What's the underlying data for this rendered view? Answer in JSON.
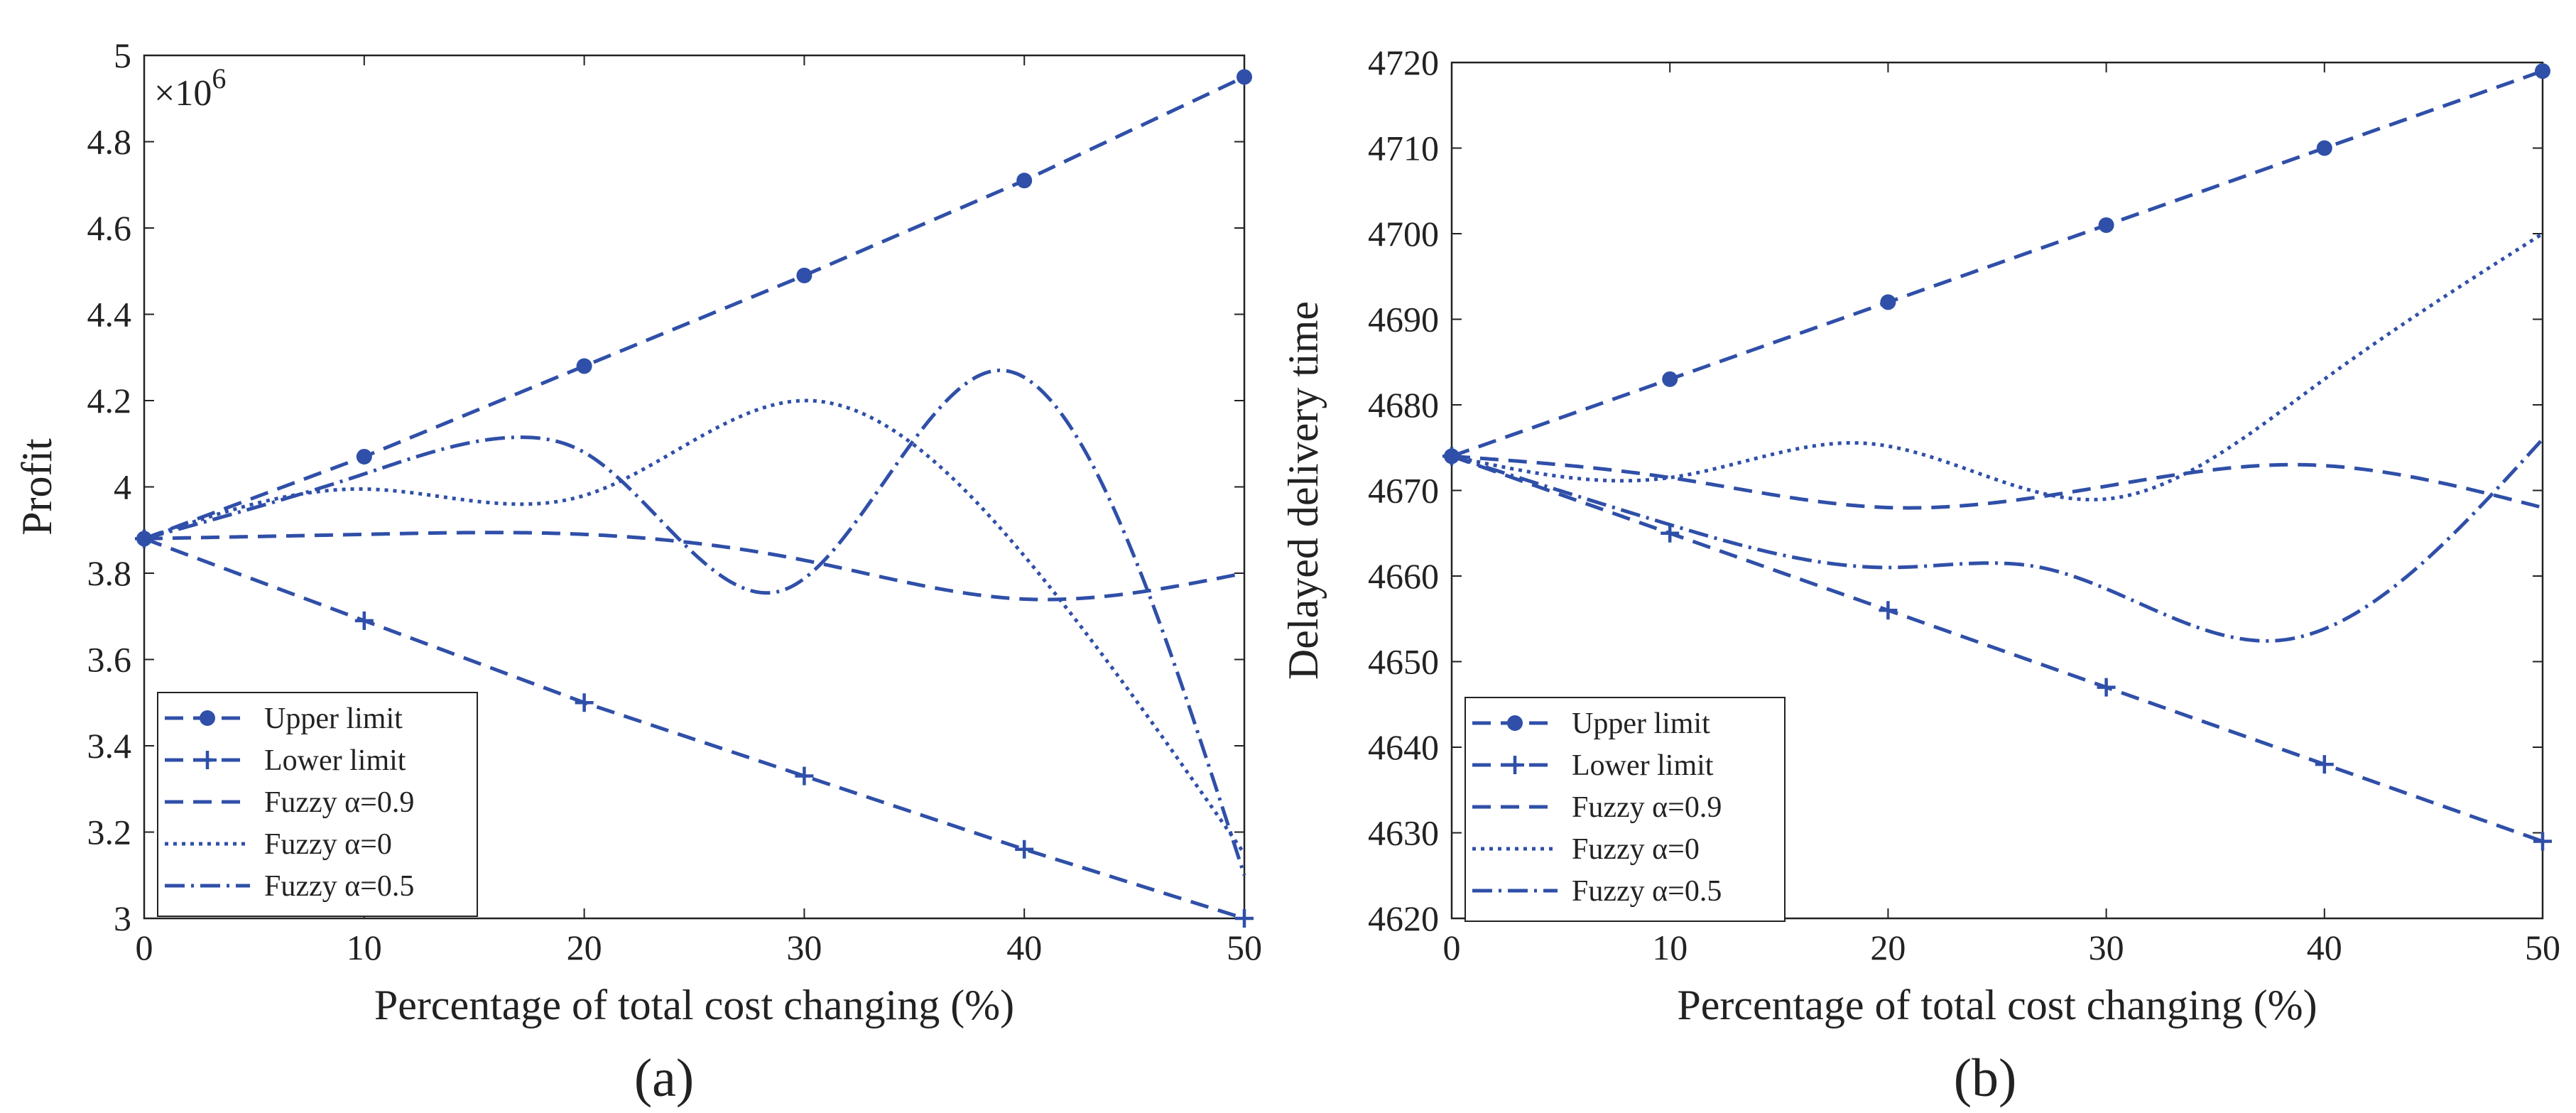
{
  "colors": {
    "series": "#2f4fa8",
    "axis": "#222222",
    "background": "#ffffff"
  },
  "chart_data": [
    {
      "type": "line",
      "subplot_label": "(a)",
      "xlabel": "Percentage of total cost changing (%)",
      "ylabel": "Profit",
      "y_multiplier_label": "×10",
      "y_multiplier_exp": "6",
      "xlim": [
        0,
        50
      ],
      "ylim": [
        3,
        5
      ],
      "xticks": [
        0,
        10,
        20,
        30,
        40,
        50
      ],
      "yticks": [
        3,
        3.2,
        3.4,
        3.6,
        3.8,
        4,
        4.2,
        4.4,
        4.6,
        4.8,
        5
      ],
      "xtick_labels": [
        "0",
        "10",
        "20",
        "30",
        "40",
        "50"
      ],
      "ytick_labels": [
        "3",
        "3.2",
        "3.4",
        "3.6",
        "3.8",
        "4",
        "4.2",
        "4.4",
        "4.6",
        "4.8",
        "5"
      ],
      "legend_position": "bottom-left",
      "series": [
        {
          "name": "Upper limit",
          "style": "dashed",
          "marker": "dot",
          "smooth": false,
          "x": [
            0,
            10,
            20,
            30,
            40,
            50
          ],
          "y": [
            3.88,
            4.07,
            4.28,
            4.49,
            4.71,
            4.95
          ]
        },
        {
          "name": "Lower limit",
          "style": "dashed",
          "marker": "plus",
          "smooth": false,
          "x": [
            0,
            10,
            20,
            30,
            40,
            50
          ],
          "y": [
            3.88,
            3.69,
            3.5,
            3.33,
            3.16,
            3.0
          ]
        },
        {
          "name": "Fuzzy α=0.9",
          "style": "dashed",
          "marker": "none",
          "smooth": true,
          "x": [
            0,
            10,
            20,
            30,
            40,
            50
          ],
          "y": [
            3.88,
            3.89,
            3.89,
            3.83,
            3.74,
            3.8
          ]
        },
        {
          "name": "Fuzzy α=0",
          "style": "dotted",
          "marker": "none",
          "smooth": true,
          "x": [
            0,
            10,
            17,
            20,
            30,
            40,
            50
          ],
          "y": [
            3.88,
            3.995,
            3.96,
            3.98,
            4.2,
            3.84,
            3.15
          ]
        },
        {
          "name": "Fuzzy α=0.5",
          "style": "dashdot",
          "marker": "none",
          "smooth": true,
          "x": [
            0,
            10,
            17,
            20,
            29,
            39,
            50
          ],
          "y": [
            3.88,
            4.03,
            4.115,
            4.08,
            3.76,
            4.27,
            3.1
          ]
        }
      ]
    },
    {
      "type": "line",
      "subplot_label": "(b)",
      "xlabel": "Percentage of total cost changing (%)",
      "ylabel": "Delayed delivery time",
      "xlim": [
        0,
        50
      ],
      "ylim": [
        4620,
        4720
      ],
      "xticks": [
        0,
        10,
        20,
        30,
        40,
        50
      ],
      "yticks": [
        4620,
        4630,
        4640,
        4650,
        4660,
        4670,
        4680,
        4690,
        4700,
        4710,
        4720
      ],
      "xtick_labels": [
        "0",
        "10",
        "20",
        "30",
        "40",
        "50"
      ],
      "ytick_labels": [
        "4620",
        "4630",
        "4640",
        "4650",
        "4660",
        "4670",
        "4680",
        "4690",
        "4700",
        "4710",
        "4720"
      ],
      "legend_position": "bottom-left",
      "series": [
        {
          "name": "Upper limit",
          "style": "dashed",
          "marker": "dot",
          "smooth": false,
          "x": [
            0,
            10,
            20,
            30,
            40,
            50
          ],
          "y": [
            4674,
            4683,
            4692,
            4701,
            4710,
            4719
          ]
        },
        {
          "name": "Lower limit",
          "style": "dashed",
          "marker": "plus",
          "smooth": false,
          "x": [
            0,
            10,
            20,
            30,
            40,
            50
          ],
          "y": [
            4674,
            4665,
            4656,
            4647,
            4638,
            4629
          ]
        },
        {
          "name": "Fuzzy α=0.9",
          "style": "dashed",
          "marker": "none",
          "smooth": true,
          "x": [
            0,
            10,
            20,
            30,
            39,
            50
          ],
          "y": [
            4674,
            4671.5,
            4668,
            4670.5,
            4673,
            4668
          ]
        },
        {
          "name": "Fuzzy α=0",
          "style": "dotted",
          "marker": "none",
          "smooth": true,
          "x": [
            0,
            10,
            19,
            30,
            40,
            50
          ],
          "y": [
            4674,
            4671.5,
            4675.5,
            4669,
            4683,
            4700
          ]
        },
        {
          "name": "Fuzzy α=0.5",
          "style": "dashdot",
          "marker": "none",
          "smooth": true,
          "x": [
            0,
            10,
            20,
            27,
            38,
            50
          ],
          "y": [
            4674,
            4666,
            4661,
            4661,
            4652.5,
            4676
          ]
        }
      ]
    }
  ]
}
